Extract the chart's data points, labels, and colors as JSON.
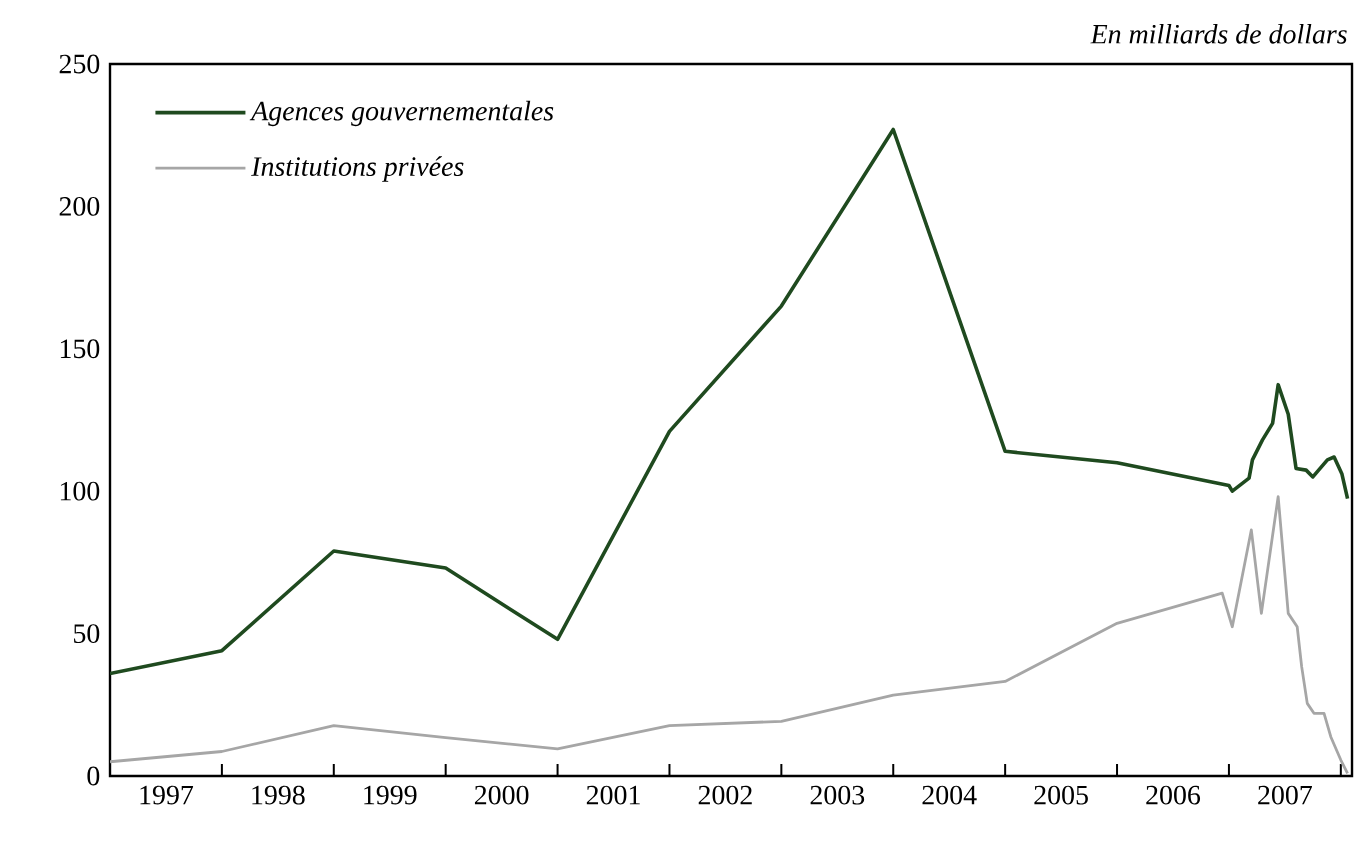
{
  "chart_data": {
    "type": "line",
    "title": "En milliards de dollars",
    "series": [
      {
        "name": "Agences gouvernementales",
        "color": "#1f4a1f",
        "x": [
          1997.0,
          1998.0,
          1999.0,
          2000.0,
          2001.0,
          2002.0,
          2003.0,
          2004.0,
          2005.0,
          2006.0,
          2007.0,
          2007.03,
          2007.18,
          2007.21,
          2007.3,
          2007.39,
          2007.44,
          2007.53,
          2007.6,
          2007.69,
          2007.75,
          2007.88,
          2007.94,
          2008.01,
          2008.06
        ],
        "values": [
          36,
          44,
          79,
          73,
          48,
          121,
          165,
          227,
          114,
          110,
          102,
          100,
          104.6,
          111,
          118,
          123.8,
          137.4,
          127,
          108,
          107.4,
          105,
          111,
          112,
          106,
          97.4
        ]
      },
      {
        "name": "Institutions privées",
        "color": "#a6a6a6",
        "x": [
          1997.0,
          1998.0,
          1999.0,
          2000.0,
          2001.0,
          2002.0,
          2003.0,
          2004.0,
          2005.0,
          2006.0,
          2006.94,
          2007.03,
          2007.2,
          2007.29,
          2007.44,
          2007.53,
          2007.61,
          2007.65,
          2007.7,
          2007.76,
          2007.85,
          2007.91,
          2008.0,
          2008.06
        ],
        "values": [
          5,
          8.6,
          17.7,
          13.5,
          9.5,
          17.7,
          19.2,
          28.4,
          33.2,
          53.6,
          64.2,
          52.4,
          86.4,
          57.1,
          98.1,
          57.1,
          52.4,
          38.4,
          25.5,
          22,
          22,
          13.8,
          5.6,
          0.9
        ]
      }
    ],
    "xlim": [
      1997.0,
      2008.1
    ],
    "xticks": [
      {
        "value": 1998,
        "label": null
      },
      {
        "value": 1999,
        "label": null
      },
      {
        "value": 2000,
        "label": null
      },
      {
        "value": 2001,
        "label": null
      },
      {
        "value": 2002,
        "label": null
      },
      {
        "value": 2003,
        "label": null
      },
      {
        "value": 2004,
        "label": null
      },
      {
        "value": 2005,
        "label": null
      },
      {
        "value": 2006,
        "label": null
      },
      {
        "value": 2007,
        "label": null
      },
      {
        "value": 2008,
        "label": null
      },
      {
        "value": 1997.5,
        "label": "1997"
      },
      {
        "value": 1998.5,
        "label": "1998"
      },
      {
        "value": 1999.5,
        "label": "1999"
      },
      {
        "value": 2000.5,
        "label": "2000"
      },
      {
        "value": 2001.5,
        "label": "2001"
      },
      {
        "value": 2002.5,
        "label": "2002"
      },
      {
        "value": 2003.5,
        "label": "2003"
      },
      {
        "value": 2004.5,
        "label": "2004"
      },
      {
        "value": 2005.5,
        "label": "2005"
      },
      {
        "value": 2006.5,
        "label": "2006"
      },
      {
        "value": 2007.5,
        "label": "2007"
      }
    ],
    "ylim": [
      0,
      250
    ],
    "yticks": [
      0,
      50,
      100,
      150,
      200,
      250
    ],
    "grid": false,
    "legend": "top left",
    "marker": "none",
    "line_style": "solid"
  }
}
